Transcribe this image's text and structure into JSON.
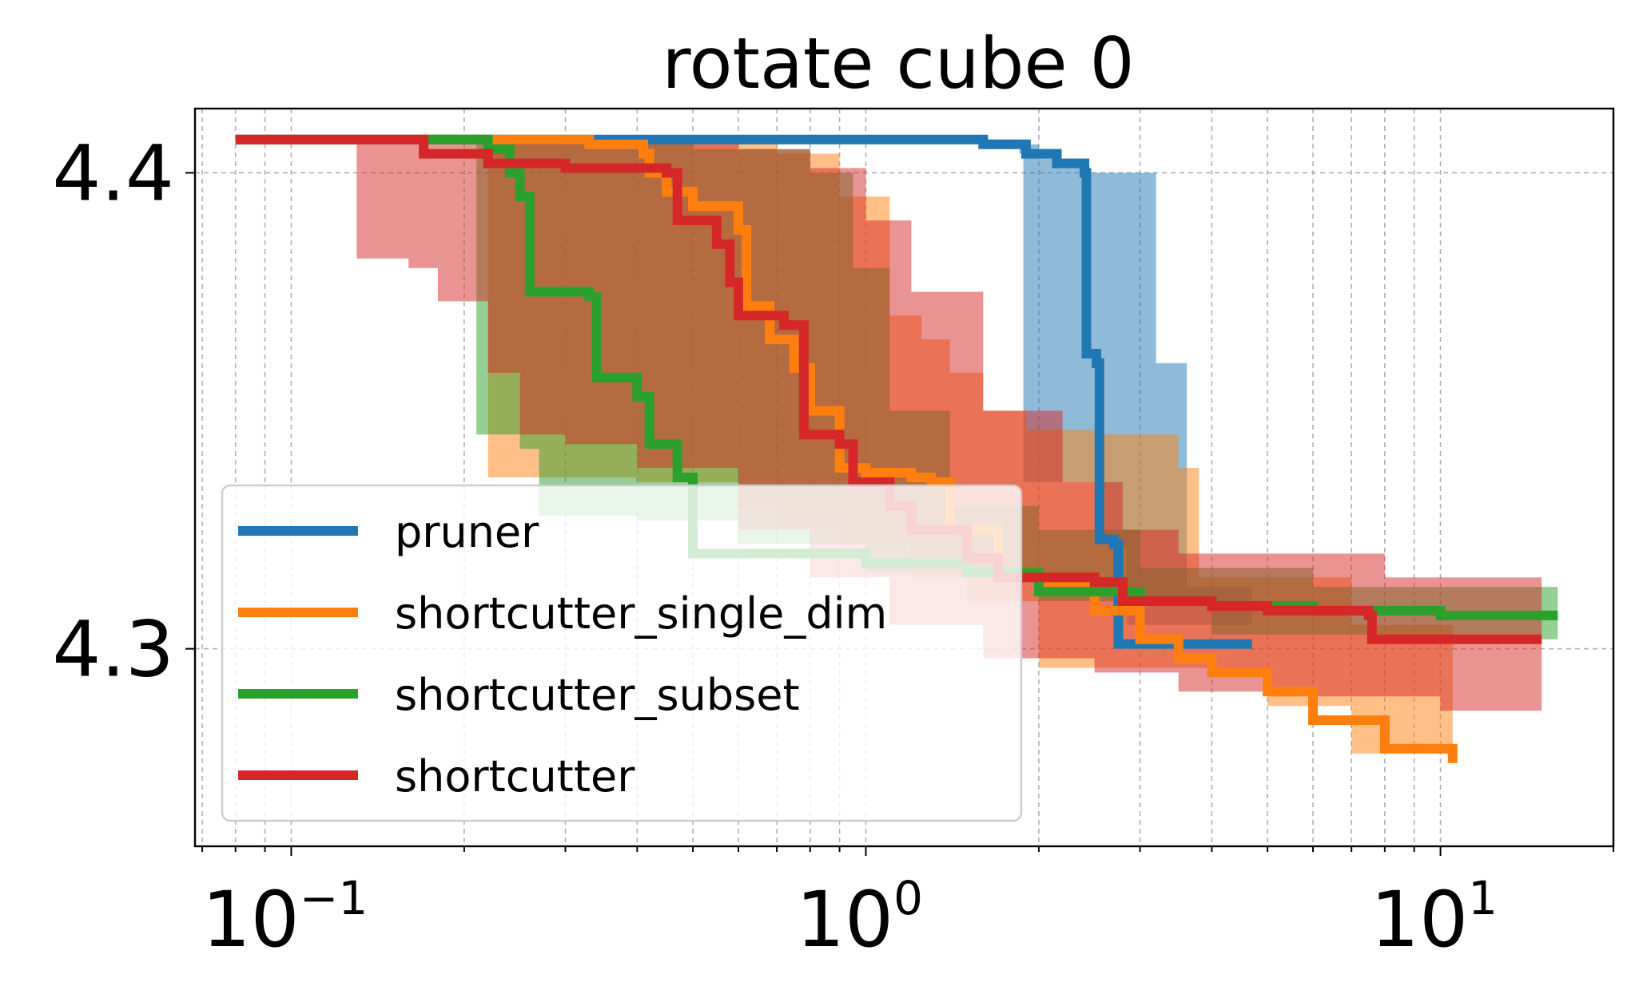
{
  "chart_data": {
    "type": "line",
    "title": "rotate cube 0",
    "xlabel": "",
    "ylabel": "",
    "xscale": "log",
    "xlim": [
      0.068,
      20
    ],
    "ylim": [
      4.2585,
      4.4135
    ],
    "grid": true,
    "legend_position": "bottom-left",
    "yticks": [
      {
        "value": 4.3,
        "label": "4.3"
      },
      {
        "value": 4.4,
        "label": "4.4"
      }
    ],
    "xticks": [
      {
        "value": 0.1,
        "base": "10",
        "exp": "−1"
      },
      {
        "value": 1,
        "base": "10",
        "exp": "0"
      },
      {
        "value": 10,
        "base": "10",
        "exp": "1"
      }
    ],
    "series": [
      {
        "name": "pruner",
        "color": "#1f77b4",
        "line": [
          [
            0.08,
            4.407
          ],
          [
            1.2,
            4.407
          ],
          [
            1.6,
            4.406
          ],
          [
            1.9,
            4.404
          ],
          [
            2.15,
            4.402
          ],
          [
            2.4,
            4.4
          ],
          [
            2.42,
            4.362
          ],
          [
            2.52,
            4.36
          ],
          [
            2.55,
            4.323
          ],
          [
            2.7,
            4.322
          ],
          [
            2.75,
            4.301
          ],
          [
            4.7,
            4.301
          ]
        ],
        "lower": [
          [
            0.08,
            4.407
          ],
          [
            1.2,
            4.407
          ],
          [
            1.85,
            4.404
          ],
          [
            1.88,
            4.335
          ],
          [
            2.5,
            4.334
          ],
          [
            2.52,
            4.322
          ],
          [
            2.8,
            4.321
          ],
          [
            2.85,
            4.305
          ],
          [
            4.7,
            4.305
          ]
        ],
        "upper": [
          [
            0.08,
            4.407
          ],
          [
            1.6,
            4.406
          ],
          [
            2.0,
            4.403
          ],
          [
            2.45,
            4.4
          ],
          [
            3.15,
            4.4
          ],
          [
            3.2,
            4.36
          ],
          [
            3.6,
            4.36
          ],
          [
            3.62,
            4.313
          ],
          [
            4.7,
            4.313
          ]
        ]
      },
      {
        "name": "shortcutter_single_dim",
        "color": "#ff7f0e",
        "line": [
          [
            0.08,
            4.407
          ],
          [
            0.33,
            4.406
          ],
          [
            0.41,
            4.404
          ],
          [
            0.42,
            4.4
          ],
          [
            0.45,
            4.396
          ],
          [
            0.5,
            4.393
          ],
          [
            0.6,
            4.388
          ],
          [
            0.62,
            4.372
          ],
          [
            0.68,
            4.365
          ],
          [
            0.75,
            4.359
          ],
          [
            0.8,
            4.35
          ],
          [
            0.9,
            4.338
          ],
          [
            1.0,
            4.337
          ],
          [
            1.2,
            4.336
          ],
          [
            1.3,
            4.335
          ],
          [
            1.4,
            4.325
          ],
          [
            1.7,
            4.316
          ],
          [
            2.0,
            4.313
          ],
          [
            2.5,
            4.308
          ],
          [
            3.0,
            4.302
          ],
          [
            3.5,
            4.298
          ],
          [
            4.0,
            4.295
          ],
          [
            5.0,
            4.291
          ],
          [
            6.0,
            4.285
          ],
          [
            8.0,
            4.279
          ],
          [
            10.5,
            4.276
          ]
        ],
        "lower": [
          [
            0.08,
            4.407
          ],
          [
            0.2,
            4.406
          ],
          [
            0.22,
            4.336
          ],
          [
            0.4,
            4.335
          ],
          [
            0.6,
            4.33
          ],
          [
            0.7,
            4.326
          ],
          [
            0.9,
            4.322
          ],
          [
            1.2,
            4.315
          ],
          [
            1.5,
            4.31
          ],
          [
            2.0,
            4.296
          ],
          [
            4.0,
            4.295
          ],
          [
            5.0,
            4.288
          ],
          [
            7.0,
            4.278
          ],
          [
            10.5,
            4.272
          ]
        ],
        "upper": [
          [
            0.08,
            4.407
          ],
          [
            0.7,
            4.404
          ],
          [
            0.9,
            4.395
          ],
          [
            1.1,
            4.37
          ],
          [
            1.25,
            4.365
          ],
          [
            1.4,
            4.358
          ],
          [
            1.6,
            4.35
          ],
          [
            1.9,
            4.346
          ],
          [
            2.5,
            4.345
          ],
          [
            3.5,
            4.338
          ],
          [
            3.8,
            4.315
          ],
          [
            7.0,
            4.305
          ],
          [
            10.5,
            4.283
          ]
        ]
      },
      {
        "name": "shortcutter_subset",
        "color": "#2ca02c",
        "line": [
          [
            0.08,
            4.407
          ],
          [
            0.22,
            4.405
          ],
          [
            0.24,
            4.4
          ],
          [
            0.25,
            4.395
          ],
          [
            0.26,
            4.375
          ],
          [
            0.33,
            4.374
          ],
          [
            0.34,
            4.357
          ],
          [
            0.4,
            4.353
          ],
          [
            0.42,
            4.343
          ],
          [
            0.47,
            4.336
          ],
          [
            0.5,
            4.32
          ],
          [
            1.0,
            4.318
          ],
          [
            1.5,
            4.316
          ],
          [
            2.0,
            4.312
          ],
          [
            3.0,
            4.31
          ],
          [
            4.0,
            4.309
          ],
          [
            6.0,
            4.308
          ],
          [
            10.0,
            4.307
          ],
          [
            16.0,
            4.307
          ]
        ],
        "lower": [
          [
            0.08,
            4.407
          ],
          [
            0.2,
            4.406
          ],
          [
            0.21,
            4.345
          ],
          [
            0.25,
            4.342
          ],
          [
            0.27,
            4.328
          ],
          [
            0.4,
            4.327
          ],
          [
            0.6,
            4.322
          ],
          [
            1.0,
            4.316
          ],
          [
            2.0,
            4.31
          ],
          [
            4.0,
            4.303
          ],
          [
            8.0,
            4.302
          ],
          [
            16.0,
            4.302
          ]
        ],
        "upper": [
          [
            0.08,
            4.407
          ],
          [
            0.5,
            4.405
          ],
          [
            0.8,
            4.4
          ],
          [
            0.95,
            4.38
          ],
          [
            1.1,
            4.35
          ],
          [
            1.4,
            4.33
          ],
          [
            2.0,
            4.325
          ],
          [
            3.0,
            4.317
          ],
          [
            6.0,
            4.313
          ],
          [
            16.0,
            4.313
          ]
        ]
      },
      {
        "name": "shortcutter",
        "color": "#d62728",
        "line": [
          [
            0.08,
            4.407
          ],
          [
            0.15,
            4.407
          ],
          [
            0.17,
            4.404
          ],
          [
            0.22,
            4.402
          ],
          [
            0.3,
            4.401
          ],
          [
            0.45,
            4.4
          ],
          [
            0.47,
            4.39
          ],
          [
            0.55,
            4.385
          ],
          [
            0.58,
            4.377
          ],
          [
            0.6,
            4.37
          ],
          [
            0.72,
            4.368
          ],
          [
            0.78,
            4.345
          ],
          [
            0.9,
            4.343
          ],
          [
            0.95,
            4.335
          ],
          [
            1.1,
            4.33
          ],
          [
            1.2,
            4.325
          ],
          [
            1.5,
            4.319
          ],
          [
            1.7,
            4.315
          ],
          [
            2.5,
            4.314
          ],
          [
            2.8,
            4.31
          ],
          [
            4.0,
            4.309
          ],
          [
            5.0,
            4.308
          ],
          [
            7.5,
            4.307
          ],
          [
            7.6,
            4.302
          ],
          [
            15.0,
            4.302
          ]
        ],
        "lower": [
          [
            0.08,
            4.407
          ],
          [
            0.12,
            4.407
          ],
          [
            0.13,
            4.382
          ],
          [
            0.16,
            4.38
          ],
          [
            0.18,
            4.373
          ],
          [
            0.22,
            4.358
          ],
          [
            0.25,
            4.345
          ],
          [
            0.3,
            4.343
          ],
          [
            0.4,
            4.338
          ],
          [
            0.6,
            4.325
          ],
          [
            0.8,
            4.315
          ],
          [
            1.1,
            4.305
          ],
          [
            1.6,
            4.298
          ],
          [
            2.5,
            4.295
          ],
          [
            3.5,
            4.291
          ],
          [
            6.0,
            4.29
          ],
          [
            10.0,
            4.287
          ],
          [
            15.0,
            4.285
          ]
        ],
        "upper": [
          [
            0.08,
            4.407
          ],
          [
            0.6,
            4.405
          ],
          [
            0.8,
            4.401
          ],
          [
            1.0,
            4.39
          ],
          [
            1.2,
            4.375
          ],
          [
            1.6,
            4.35
          ],
          [
            2.2,
            4.335
          ],
          [
            2.8,
            4.325
          ],
          [
            3.5,
            4.32
          ],
          [
            5.0,
            4.32
          ],
          [
            8.0,
            4.315
          ],
          [
            15.0,
            4.313
          ]
        ]
      }
    ]
  }
}
